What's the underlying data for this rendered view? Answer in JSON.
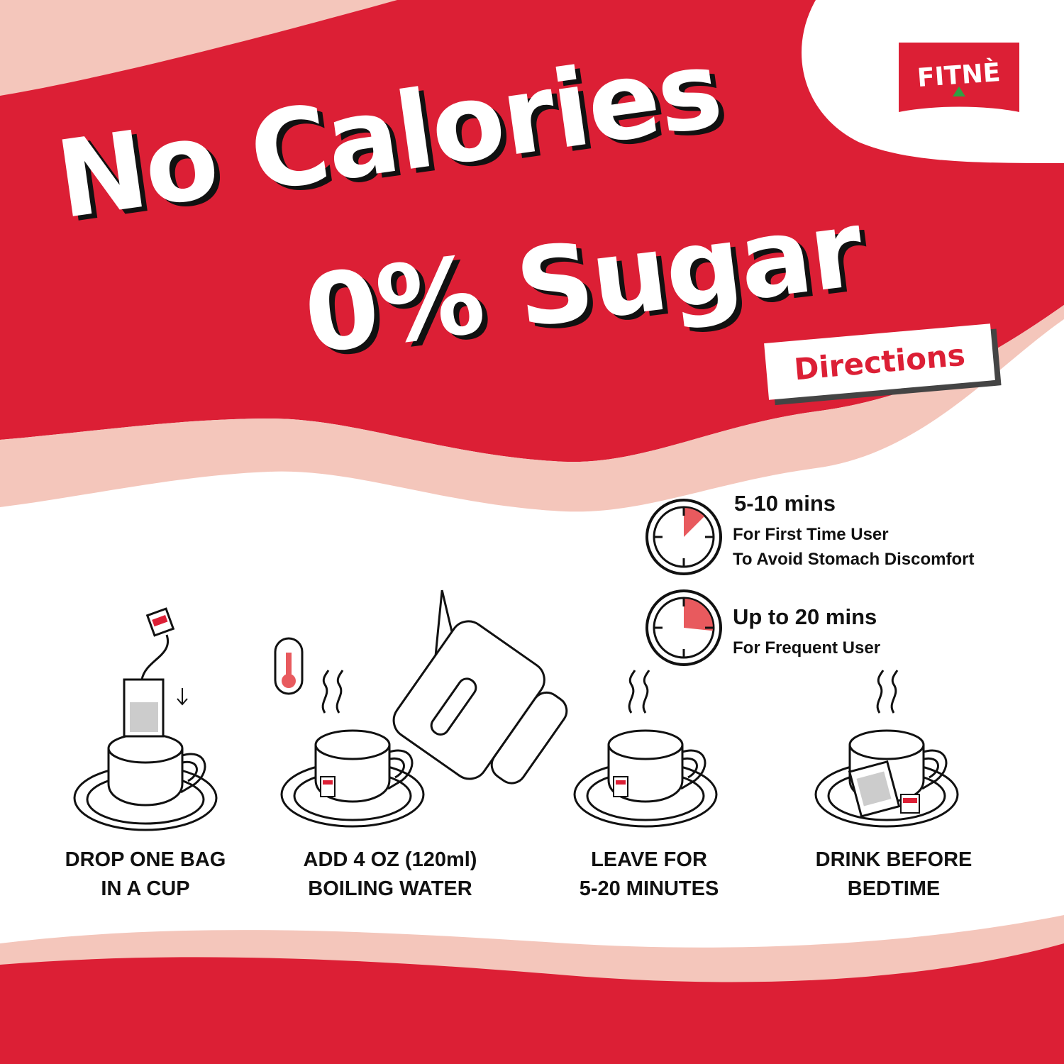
{
  "brand": {
    "logo_text": "FITNÈ"
  },
  "colors": {
    "red": "#dc1f35",
    "pink": "#f4c6bb",
    "timer_fill": "#e85a5e",
    "logo_green": "#2ea043"
  },
  "headline": {
    "line1": "No Calories",
    "line2": "0% Sugar"
  },
  "directions_label": "Directions",
  "timers": [
    {
      "title": "5-10 mins",
      "lines": [
        "For First Time User",
        "To Avoid Stomach Discomfort"
      ],
      "fill_minutes": 7.5,
      "icon": "timer-icon"
    },
    {
      "title": "Up to 20 mins",
      "lines": [
        "For Frequent User"
      ],
      "fill_minutes": 16,
      "icon": "timer-icon"
    }
  ],
  "steps": [
    {
      "line1": "DROP ONE BAG",
      "line2": "IN A CUP",
      "icon": "teabag-drop-icon"
    },
    {
      "line1": "ADD 4 OZ  (120ml)",
      "line2": "BOILING WATER",
      "icon": "kettle-pour-icon"
    },
    {
      "line1": "LEAVE FOR",
      "line2": "5-20 MINUTES",
      "icon": "steeping-cup-icon"
    },
    {
      "line1": "DRINK BEFORE",
      "line2": "BEDTIME",
      "icon": "cup-with-bag-icon"
    }
  ]
}
